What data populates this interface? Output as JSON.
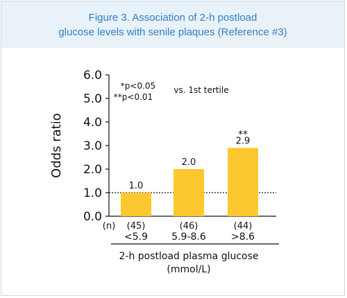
{
  "figure_title": {
    "line1": "Figure 3. Association of 2-h postload",
    "line2": "glucose levels with senile plaques (Reference #3)"
  },
  "colors": {
    "title": "#2f80c7",
    "header_bg": "#e9f1f9",
    "border": "#c9d9ea",
    "bar": "#fdc72f"
  },
  "chart_data": {
    "type": "bar",
    "ylabel": "Odds ratio",
    "xlabel": "2-h postload plasma glucose",
    "xlabel_unit": "(mmol/L)",
    "ylim": [
      0,
      6
    ],
    "yticks": [
      "0.0",
      "1.0",
      "2.0",
      "3.0",
      "4.0",
      "5.0",
      "6.0"
    ],
    "reference_line": 1.0,
    "n_label": "(n)",
    "categories": [
      "<5.9",
      "5.9-8.6",
      ">8.6"
    ],
    "n_values": [
      "(45)",
      "(46)",
      "(44)"
    ],
    "values": [
      1.0,
      2.0,
      2.9
    ],
    "value_labels": [
      "1.0",
      "2.0",
      "2.9"
    ],
    "significance": [
      "",
      "",
      "**"
    ],
    "legend": {
      "line1": "*p<0.05",
      "line2": "**p<0.01",
      "note": "vs. 1st tertile"
    }
  }
}
